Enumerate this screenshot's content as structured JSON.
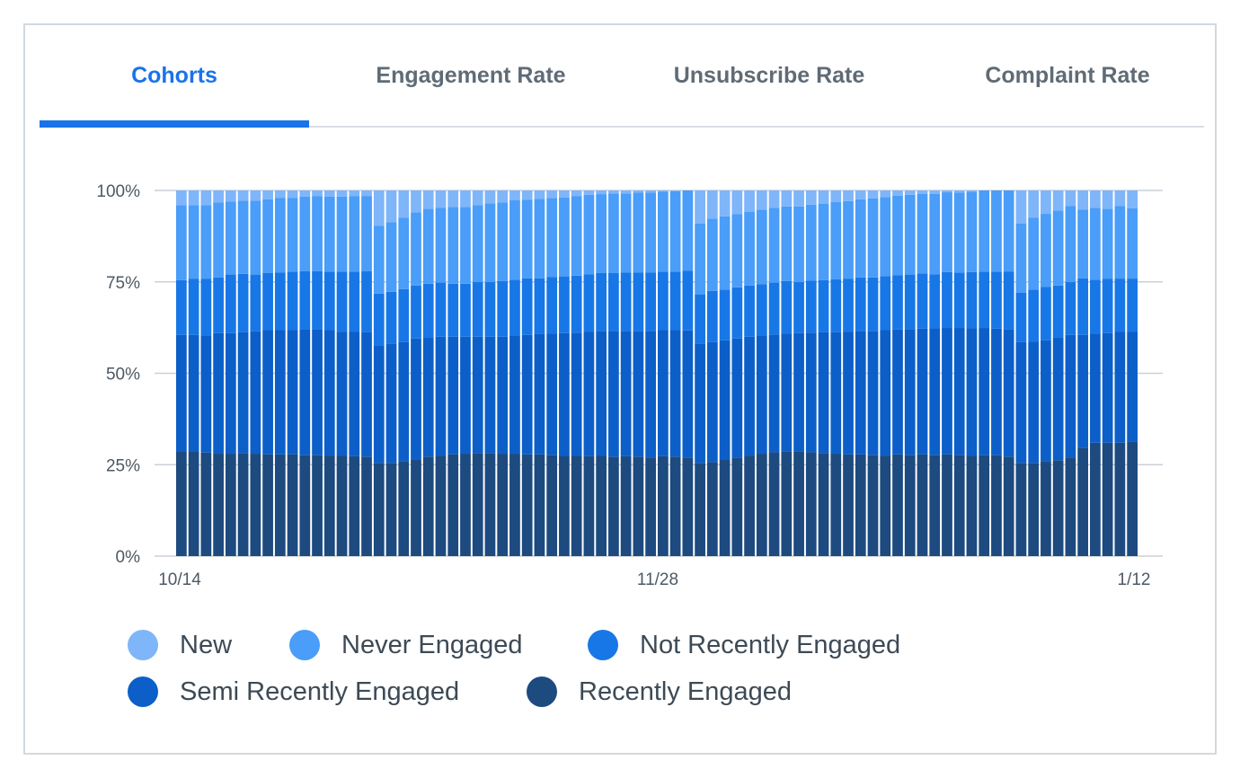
{
  "tabs": [
    {
      "label": "Cohorts",
      "active": true
    },
    {
      "label": "Engagement Rate",
      "active": false
    },
    {
      "label": "Unsubscribe Rate",
      "active": false
    },
    {
      "label": "Complaint Rate",
      "active": false
    }
  ],
  "colors": {
    "new": "#7fb5f9",
    "never_engaged": "#4a9df8",
    "not_recently_engaged": "#1877e6",
    "semi_recently_engaged": "#0c5fc8",
    "recently_engaged": "#1d4a7f",
    "active_tab": "#1a73e8",
    "gridline": "#c9d0d7"
  },
  "legend": [
    {
      "label": "New",
      "color": "#7fb5f9"
    },
    {
      "label": "Never Engaged",
      "color": "#4a9df8"
    },
    {
      "label": "Not Recently Engaged",
      "color": "#1877e6"
    },
    {
      "label": "Semi Recently Engaged",
      "color": "#0c5fc8"
    },
    {
      "label": "Recently Engaged",
      "color": "#1d4a7f"
    }
  ],
  "chart_data": {
    "type": "bar",
    "stacked": true,
    "normalized": true,
    "x_tick_labels": [
      "10/14",
      "11/28",
      "1/12"
    ],
    "y_tick_labels": [
      "0%",
      "25%",
      "50%",
      "75%",
      "100%"
    ],
    "ylim": [
      0,
      100
    ],
    "grid": true,
    "legend_position": "bottom",
    "segment_count": 5,
    "series": [
      {
        "name": "Recently Engaged",
        "color": "#1d4a7f",
        "values": [
          28.5,
          28.5,
          28.3,
          28.0,
          28.0,
          28.2,
          28.0,
          27.8,
          27.8,
          27.8,
          27.6,
          27.6,
          27.5,
          27.4,
          27.3,
          27.2,
          25.5,
          25.5,
          26.0,
          26.5,
          27.2,
          27.5,
          27.8,
          28.0,
          28.2,
          28.2,
          28.0,
          28.0,
          27.8,
          27.8,
          27.6,
          27.4,
          27.4,
          27.3,
          27.4,
          27.2,
          27.3,
          27.2,
          27.0,
          27.3,
          27.2,
          27.0,
          25.5,
          25.7,
          26.4,
          26.8,
          27.5,
          28.0,
          28.4,
          28.6,
          28.6,
          28.4,
          28.2,
          28.0,
          27.8,
          27.8,
          27.6,
          27.5,
          27.8,
          27.6,
          27.8,
          27.6,
          27.8,
          27.6,
          27.4,
          27.6,
          27.6,
          27.3,
          25.5,
          25.5,
          26.0,
          26.2,
          27.0,
          29.5,
          31.0,
          31.0,
          31.0,
          31.3
        ]
      },
      {
        "name": "Semi Recently Engaged",
        "color": "#0c5fc8",
        "values": [
          32.0,
          32.0,
          32.0,
          33.0,
          33.0,
          33.0,
          33.5,
          34.0,
          34.0,
          34.0,
          34.5,
          34.5,
          34.3,
          34.0,
          34.0,
          34.0,
          32.0,
          32.5,
          32.5,
          33.0,
          32.5,
          32.5,
          32.2,
          32.0,
          31.8,
          31.8,
          32.0,
          32.3,
          32.7,
          32.9,
          33.2,
          33.6,
          33.7,
          34.0,
          34.2,
          34.4,
          34.3,
          34.4,
          34.6,
          34.5,
          34.6,
          34.8,
          32.5,
          32.8,
          32.6,
          32.7,
          32.5,
          32.4,
          32.2,
          32.2,
          32.4,
          32.7,
          33.0,
          33.2,
          33.6,
          33.8,
          34.0,
          34.3,
          34.2,
          34.5,
          34.4,
          34.7,
          34.6,
          34.8,
          34.9,
          34.8,
          34.6,
          34.9,
          33.0,
          33.2,
          33.0,
          33.6,
          33.5,
          31.0,
          29.9,
          30.0,
          30.3,
          30.0
        ]
      },
      {
        "name": "Not Recently Engaged",
        "color": "#1877e6",
        "values": [
          15.0,
          15.3,
          15.5,
          15.2,
          16.0,
          16.0,
          15.5,
          15.6,
          15.8,
          16.0,
          15.8,
          15.8,
          16.0,
          16.4,
          16.5,
          16.7,
          14.3,
          14.3,
          14.5,
          14.5,
          14.8,
          14.8,
          14.5,
          14.5,
          15.0,
          15.0,
          15.2,
          15.3,
          15.5,
          15.3,
          15.5,
          15.5,
          15.6,
          15.8,
          15.8,
          15.8,
          16.0,
          16.0,
          16.0,
          16.0,
          16.0,
          16.3,
          13.5,
          14.0,
          13.9,
          14.0,
          14.0,
          14.0,
          14.2,
          14.4,
          14.0,
          14.2,
          14.3,
          14.5,
          14.4,
          14.6,
          14.6,
          14.8,
          14.8,
          14.9,
          15.1,
          14.8,
          15.3,
          15.1,
          15.4,
          15.4,
          15.6,
          15.8,
          13.5,
          14.2,
          14.6,
          14.2,
          14.5,
          15.5,
          14.7,
          14.8,
          14.6,
          14.6
        ]
      },
      {
        "name": "Never Engaged",
        "color": "#4a9df8",
        "values": [
          20.5,
          20.2,
          20.2,
          20.5,
          20.0,
          20.0,
          20.2,
          20.2,
          20.4,
          20.2,
          20.4,
          20.5,
          20.5,
          20.5,
          20.6,
          20.6,
          18.5,
          19.0,
          19.5,
          20.0,
          20.5,
          20.5,
          21.0,
          21.0,
          21.0,
          21.5,
          21.5,
          21.7,
          21.5,
          21.7,
          21.6,
          21.6,
          21.7,
          21.7,
          21.6,
          21.8,
          21.6,
          21.8,
          21.8,
          21.9,
          22.0,
          22.0,
          19.5,
          19.8,
          20.0,
          20.0,
          20.2,
          20.3,
          20.4,
          20.4,
          20.6,
          20.8,
          20.9,
          21.1,
          21.3,
          21.4,
          21.6,
          21.6,
          21.8,
          21.8,
          21.8,
          22.0,
          21.8,
          21.9,
          22.0,
          22.2,
          22.2,
          22.3,
          19.0,
          19.6,
          20.0,
          20.5,
          20.7,
          18.8,
          19.6,
          19.2,
          19.8,
          19.2
        ]
      },
      {
        "name": "New",
        "color": "#7fb5f9",
        "values": [
          4.0,
          4.0,
          4.0,
          3.3,
          3.0,
          2.8,
          2.8,
          2.4,
          2.0,
          2.0,
          1.7,
          1.6,
          1.7,
          1.7,
          1.6,
          1.5,
          9.7,
          8.7,
          7.5,
          6.0,
          5.0,
          4.7,
          4.5,
          4.5,
          4.0,
          3.5,
          3.3,
          2.7,
          2.5,
          2.3,
          2.1,
          1.9,
          1.6,
          1.2,
          1.0,
          0.8,
          0.8,
          0.6,
          0.6,
          0.3,
          0.2,
          0.0,
          9.0,
          7.7,
          7.1,
          6.5,
          5.8,
          5.3,
          4.8,
          4.4,
          4.4,
          3.9,
          3.6,
          3.2,
          2.9,
          2.4,
          2.2,
          1.8,
          1.4,
          1.2,
          0.9,
          0.9,
          0.5,
          0.6,
          0.3,
          0.0,
          0.0,
          -0.3,
          9.0,
          7.5,
          6.4,
          5.5,
          4.3,
          5.2,
          4.8,
          5.0,
          4.3,
          4.9
        ]
      }
    ]
  }
}
